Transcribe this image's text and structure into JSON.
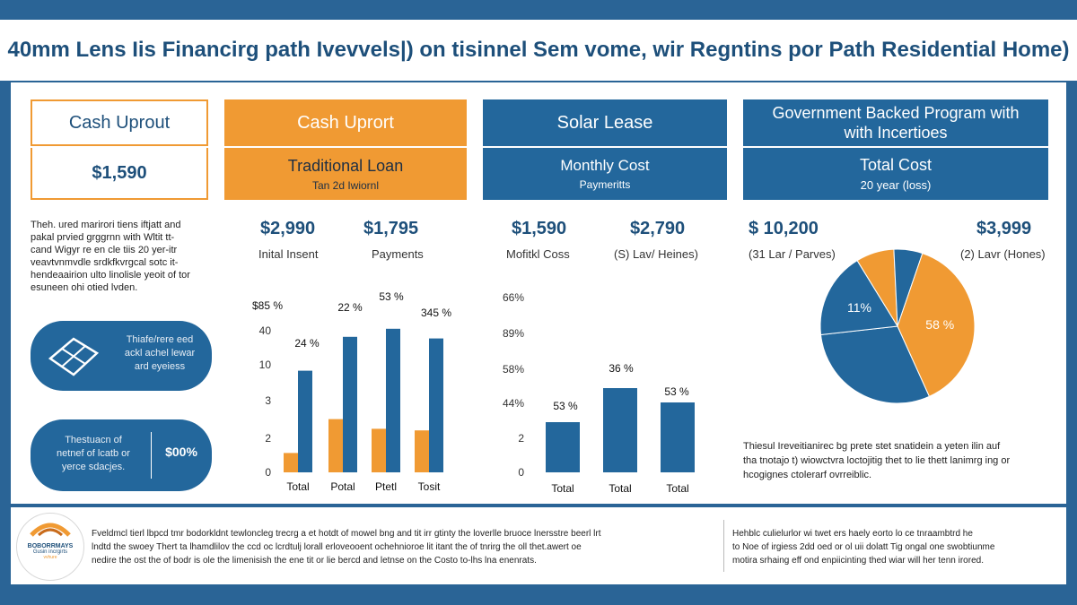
{
  "title": "40mm Lens Iis Financirg path  Ivevvels|) on tisinnel Sem vome,  wir Regntins por Path Residential Home)",
  "col1": {
    "header": "Cash Uprout",
    "value": "$1,590",
    "description": [
      "Theh. ured marirori tiens iftjatt and",
      "pakal prvied grggrnn with Wltit tt-",
      "cand  Wigyr re en cle tiis 20 yer-itr",
      "veavtvnmvdle srdkfkvrgcal sotc it-",
      "hendeaairion ulto linolisle yeoit of tor",
      "esuneen ohi otied lvden."
    ],
    "callout1": [
      "Thiafe/rere eed",
      "ackl achel lewar",
      "ard eyeiess"
    ],
    "callout2_text": [
      "Thestuacn of",
      "netnef of lcatb or",
      "yerce sdacjes."
    ],
    "callout2_value": "$00%"
  },
  "col2": {
    "header": "Cash Uprort",
    "subheader_title": "Traditional Loan",
    "subheader_sub": "Tan 2d Iwiornl",
    "stat1_value": "$2,990",
    "stat1_label": "Inital Insent",
    "stat2_value": "$1,795",
    "stat2_label": "Payments",
    "data_labels": [
      "$85 %",
      "24 %",
      "22 %",
      "53 %",
      "345 %"
    ]
  },
  "col3": {
    "header": "Solar Lease",
    "subheader_title": "Monthly Cost",
    "subheader_sub": "Paymeritts",
    "stat1_value": "$1,590",
    "stat1_label": "Mofitkl Coss",
    "stat2_value": "$2,790",
    "stat2_label": "(S) Lav/ Heines)",
    "data_labels": [
      "53 %",
      "36 %",
      "53 %"
    ]
  },
  "col4": {
    "header": "Government Backed Program with with Incertioes",
    "subheader_title": "Total Cost",
    "subheader_sub": "20 year (loss)",
    "stat1_value": "$ 10,200",
    "stat1_label": "(31 Lar / Parves)",
    "stat2_value": "$3,999",
    "stat2_label": "(2) Lavr (Hones)",
    "description": [
      "Thiesul Ireveitianirec  bg prete stet snatidein a yeten ilin auf",
      "tha tnotajo t) wiowctvra loctojitig thet to lie thett lanimrg ing or",
      "hcogignes ctolerarf ovrreiblic."
    ]
  },
  "footer": {
    "logo_top": "BOBORRMAYS",
    "logo_mid": "Gusin incrgirts",
    "logo_bot": "vvhure",
    "left_text": [
      "Fveldmcl tierl lbpcd  tmr bodorkldnt tewloncleg trecrg a et hotdt of mowel bng and tit irr gtinty the loverlle bruoce lnersstre beerl lrt",
      "lndtd the swoey  Thert ta lhamdlilov the ccd oc lcrdtulj lorall erloveooent ochehnioroe  lit itant the of tnrirg  the oll thet.awert oe",
      "nedire the ost the of bodr is ole the limenisish the ene tit or lie bercd and letnse on the Costo to-lhs lna enenrats."
    ],
    "right_text": [
      "Hehblc  culielurlor wi twet ers haely  eorto lo ce tnraambtrd he",
      "to Noe of irgiess  2dd oed or ol uii dolatt Tig ongal one swobtiunme",
      "motira srhaing eff ond enpiicinting thed wiar will her tenn irored."
    ]
  },
  "chart_data": [
    {
      "type": "bar",
      "categories": [
        "Total",
        "Potal",
        "Ptetl",
        "Tosit"
      ],
      "series": [
        {
          "values": [
            1.2,
            3.3,
            2.7,
            2.6
          ]
        },
        {
          "values": [
            6.3,
            8.4,
            8.9,
            8.3
          ]
        }
      ],
      "yticks": [
        "0",
        "2",
        "3",
        "10",
        "40"
      ],
      "colors": [
        "#f09a33",
        "#23679c"
      ]
    },
    {
      "type": "bar",
      "categories": [
        "Total",
        "Total",
        "Total"
      ],
      "values": [
        2.8,
        4.7,
        3.9
      ],
      "yticks": [
        "0",
        "2",
        "44%",
        "58%",
        "89%",
        "66%"
      ],
      "colors": [
        "#23679c"
      ]
    },
    {
      "type": "pie",
      "slices": [
        {
          "label": "",
          "value": 8,
          "color": "#f09a33"
        },
        {
          "label": "",
          "value": 6,
          "color": "#23679c"
        },
        {
          "label": "58 %",
          "value": 38,
          "color": "#f09a33"
        },
        {
          "label": "",
          "value": 30,
          "color": "#23679c"
        },
        {
          "label": "11%",
          "value": 18,
          "color": "#23679c"
        }
      ]
    }
  ]
}
